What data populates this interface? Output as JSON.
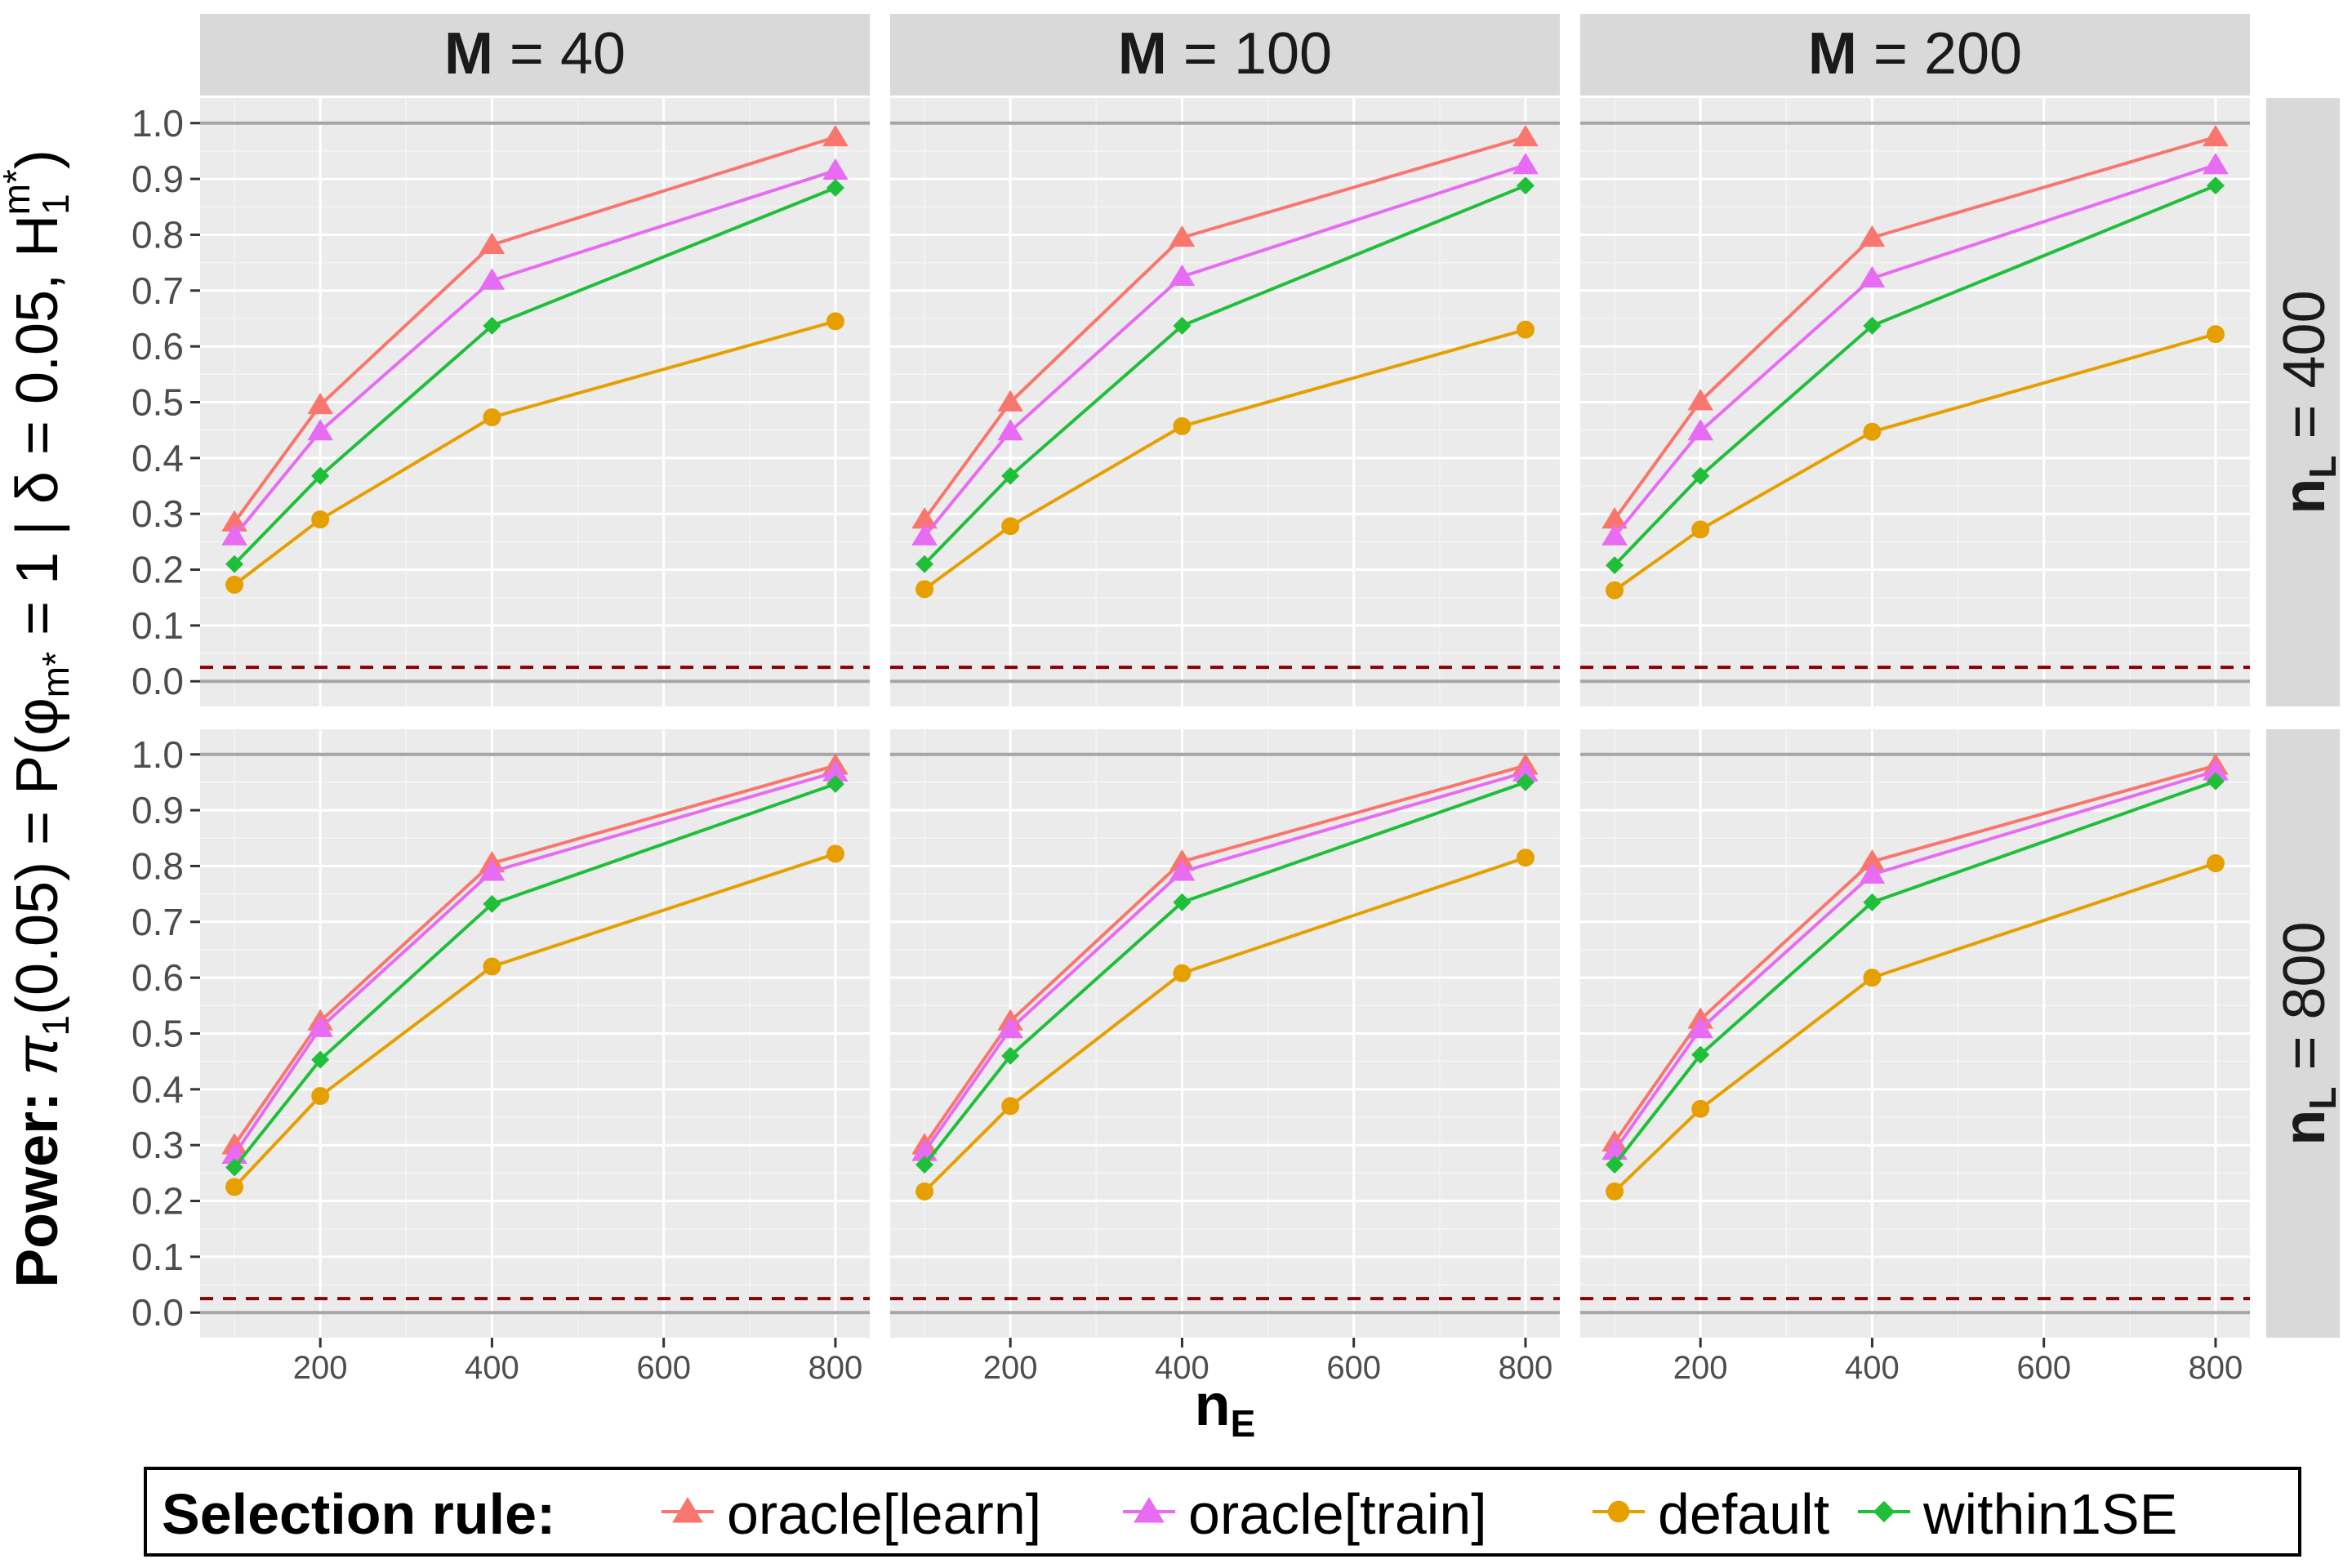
{
  "chart_data": {
    "type": "line",
    "facet_columns": [
      {
        "prefix": "M",
        "op": " = ",
        "value": "40"
      },
      {
        "prefix": "M",
        "op": " = ",
        "value": "100"
      },
      {
        "prefix": "M",
        "op": " = ",
        "value": "200"
      }
    ],
    "facet_rows": [
      {
        "prefix": "n",
        "sub": "L",
        "op": " = ",
        "value": "400"
      },
      {
        "prefix": "n",
        "sub": "L",
        "op": " = ",
        "value": "800"
      }
    ],
    "x": [
      100,
      200,
      400,
      800
    ],
    "x_ticks": [
      200,
      400,
      600,
      800
    ],
    "xlim": [
      60,
      840
    ],
    "y_ticks": [
      0.0,
      0.1,
      0.2,
      0.3,
      0.4,
      0.5,
      0.6,
      0.7,
      0.8,
      0.9,
      1.0
    ],
    "ylim": [
      -0.045,
      1.045
    ],
    "reference_lines": {
      "solid_gray": [
        0,
        1
      ],
      "dashed_darkred": 0.025
    },
    "xlabel": {
      "main": "n",
      "sub": "E"
    },
    "ylabel": {
      "bold": "Power: ",
      "pi": "π",
      "pi_sub": "1",
      "args": "(0.05) = P(",
      "phi": "φ",
      "phi_sub": "m*",
      "mid": " = 1 | δ = 0.05, H",
      "h_sub": "1",
      "h_sup": "m*",
      "close": ")"
    },
    "legend": {
      "title": "Selection rule:",
      "position": "bottom",
      "items": [
        "oracle[learn]",
        "oracle[train]",
        "default",
        "within1SE"
      ]
    },
    "series_style": [
      {
        "name": "oracle[learn]",
        "color": "#F8766D",
        "marker": "triangle"
      },
      {
        "name": "oracle[train]",
        "color": "#E76BF3",
        "marker": "triangle"
      },
      {
        "name": "default",
        "color": "#E69F00",
        "marker": "circle"
      },
      {
        "name": "within1SE",
        "color": "#1FBF3A",
        "marker": "diamond"
      }
    ],
    "panels": [
      {
        "row": 0,
        "col": 0,
        "series": [
          {
            "name": "oracle[learn]",
            "values": [
              0.285,
              0.495,
              0.782,
              0.975
            ]
          },
          {
            "name": "oracle[train]",
            "values": [
              0.26,
              0.448,
              0.718,
              0.915
            ]
          },
          {
            "name": "default",
            "values": [
              0.173,
              0.29,
              0.473,
              0.645
            ]
          },
          {
            "name": "within1SE",
            "values": [
              0.21,
              0.368,
              0.637,
              0.884
            ]
          }
        ]
      },
      {
        "row": 0,
        "col": 1,
        "series": [
          {
            "name": "oracle[learn]",
            "values": [
              0.29,
              0.5,
              0.795,
              0.975
            ]
          },
          {
            "name": "oracle[train]",
            "values": [
              0.26,
              0.448,
              0.725,
              0.925
            ]
          },
          {
            "name": "default",
            "values": [
              0.165,
              0.278,
              0.457,
              0.63
            ]
          },
          {
            "name": "within1SE",
            "values": [
              0.21,
              0.368,
              0.637,
              0.888
            ]
          }
        ]
      },
      {
        "row": 0,
        "col": 2,
        "series": [
          {
            "name": "oracle[learn]",
            "values": [
              0.29,
              0.502,
              0.795,
              0.975
            ]
          },
          {
            "name": "oracle[train]",
            "values": [
              0.26,
              0.448,
              0.722,
              0.925
            ]
          },
          {
            "name": "default",
            "values": [
              0.163,
              0.272,
              0.447,
              0.622
            ]
          },
          {
            "name": "within1SE",
            "values": [
              0.208,
              0.368,
              0.637,
              0.888
            ]
          }
        ]
      },
      {
        "row": 1,
        "col": 0,
        "series": [
          {
            "name": "oracle[learn]",
            "values": [
              0.3,
              0.522,
              0.805,
              0.98
            ]
          },
          {
            "name": "oracle[train]",
            "values": [
              0.283,
              0.51,
              0.79,
              0.968
            ]
          },
          {
            "name": "default",
            "values": [
              0.225,
              0.388,
              0.62,
              0.822
            ]
          },
          {
            "name": "within1SE",
            "values": [
              0.26,
              0.453,
              0.732,
              0.947
            ]
          }
        ]
      },
      {
        "row": 1,
        "col": 1,
        "series": [
          {
            "name": "oracle[learn]",
            "values": [
              0.3,
              0.522,
              0.808,
              0.98
            ]
          },
          {
            "name": "oracle[train]",
            "values": [
              0.288,
              0.508,
              0.79,
              0.968
            ]
          },
          {
            "name": "default",
            "values": [
              0.217,
              0.37,
              0.608,
              0.815
            ]
          },
          {
            "name": "within1SE",
            "values": [
              0.265,
              0.46,
              0.735,
              0.95
            ]
          }
        ]
      },
      {
        "row": 1,
        "col": 2,
        "series": [
          {
            "name": "oracle[learn]",
            "values": [
              0.305,
              0.525,
              0.808,
              0.98
            ]
          },
          {
            "name": "oracle[train]",
            "values": [
              0.29,
              0.508,
              0.785,
              0.97
            ]
          },
          {
            "name": "default",
            "values": [
              0.217,
              0.365,
              0.6,
              0.805
            ]
          },
          {
            "name": "within1SE",
            "values": [
              0.265,
              0.462,
              0.735,
              0.952
            ]
          }
        ]
      }
    ]
  }
}
